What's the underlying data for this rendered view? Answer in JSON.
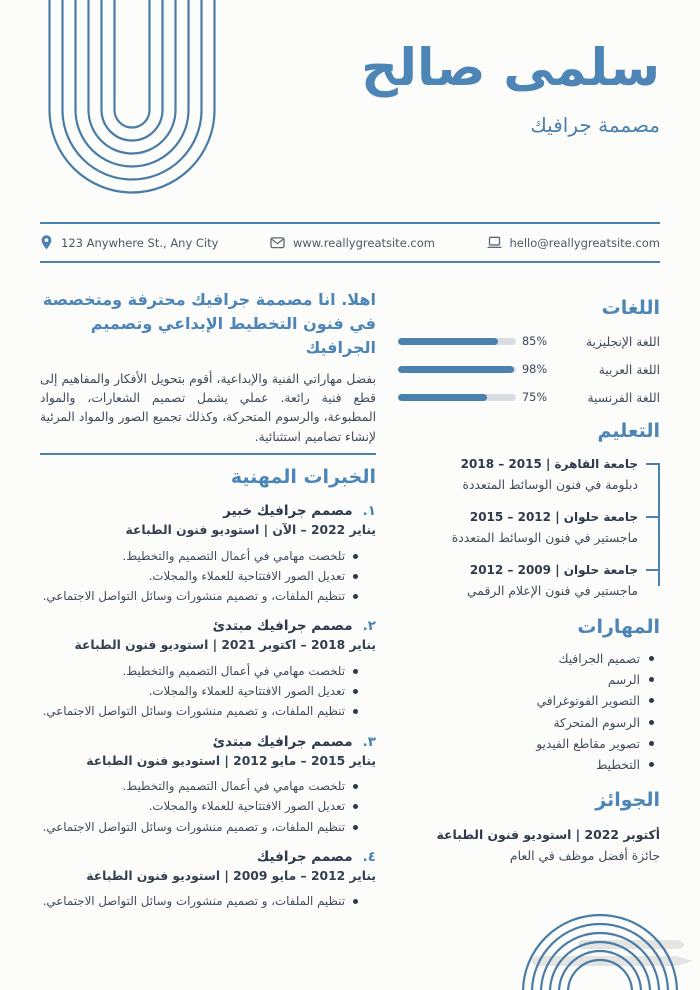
{
  "colors": {
    "accent": "#4a81ad",
    "accent_bright": "#4d86b6",
    "text_dark": "#2e3a4b",
    "text_body": "#3f4b5a",
    "bar_track": "#d9dde1",
    "watermark": "#e3e3e2"
  },
  "header": {
    "name": "سلمى صالح",
    "title": "مصممة جرافيك"
  },
  "contact": {
    "address": "123 Anywhere St., Any City",
    "website": "www.reallygreatsite.com",
    "email": "hello@reallygreatsite.com"
  },
  "about": {
    "heading": "اهلا. انا مصممة جرافيك محترفة ومتخصصة في فنون التخطيط الإبداعي وتصميم الجرافيك",
    "body": "بفضل مهاراتي الفنية والإبداعية، أقوم بتحويل الأفكار والمفاهيم إلى قطع فنية رائعة. عملي يشمل تصميم الشعارات، والمواد المطبوعة، والرسوم المتحركة، وكذلك تجميع الصور والمواد المرئية لإنشاء تصاميم استثنائية."
  },
  "experience": {
    "heading": "الخبرات المهنية",
    "jobs": [
      {
        "number": "١.",
        "title": "مصمم جرافيك خبير",
        "date": "يناير 2022 – الآن | استوديو فنون الطباعة",
        "bullets": [
          "تلخصت مهامي في أعمال التصميم والتخطيط.",
          "تعديل الصور الافتتاحية للعملاء والمجلات.",
          "تنظيم الملفات، و تصميم منشورات وسائل التواصل الاجتماعي."
        ]
      },
      {
        "number": "٢.",
        "title": "مصمم جرافيك مبتدئ",
        "date": "يناير 2018 – اكتوبر 2021 | استوديو فنون الطباعة",
        "bullets": [
          "تلخصت مهامي في أعمال التصميم والتخطيط.",
          "تعديل الصور الافتتاحية للعملاء والمجلات.",
          "تنظيم الملفات، و تصميم منشورات وسائل التواصل الاجتماعي."
        ]
      },
      {
        "number": "٣.",
        "title": "مصمم جرافيك مبتدئ",
        "date": "يناير 2015 – مايو 2012 | استوديو فنون الطباعة",
        "bullets": [
          "تلخصت مهامي في أعمال التصميم والتخطيط.",
          "تعديل الصور الافتتاحية للعملاء والمجلات.",
          "تنظيم الملفات، و تصميم منشورات وسائل التواصل الاجتماعي."
        ]
      },
      {
        "number": "٤.",
        "title": "مصمم جرافيك",
        "date": "يناير 2012 – مايو 2009 | استوديو فنون الطباعة",
        "bullets": [
          "تنظيم الملفات، و تصميم منشورات وسائل التواصل الاجتماعي."
        ]
      }
    ]
  },
  "languages": {
    "heading": "اللغات",
    "items": [
      {
        "label": "اللغة الإنجليزية",
        "percent": 85,
        "percent_label": "85%"
      },
      {
        "label": "اللغة العربية",
        "percent": 98,
        "percent_label": "98%"
      },
      {
        "label": "اللغة الفرنسية",
        "percent": 75,
        "percent_label": "75%"
      }
    ]
  },
  "education": {
    "heading": "التعليم",
    "items": [
      {
        "title": "جامعة القاهرة |  2015 – 2018",
        "degree": "دبلومة في فنون الوسائط المتعددة"
      },
      {
        "title": "جامعة حلوان |  2012 – 2015",
        "degree": "ماجستير في فنون الوسائط المتعددة"
      },
      {
        "title": "جامعة حلوان |  2009 – 2012",
        "degree": "ماجستير في فنون الإعلام الرقمي"
      }
    ]
  },
  "skills": {
    "heading": "المهارات",
    "items": [
      "تصميم الجرافيك",
      "الرسم",
      "التصوير الفوتوغرافي",
      "الرسوم المتحركة",
      "تصوير مقاطع الفيديو",
      "التخطيط"
    ]
  },
  "awards": {
    "heading": "الجوائز",
    "date": "أكتوبر 2022 | استوديو فنون الطباعة",
    "title": "جائزة أفضل موظف في العام"
  }
}
